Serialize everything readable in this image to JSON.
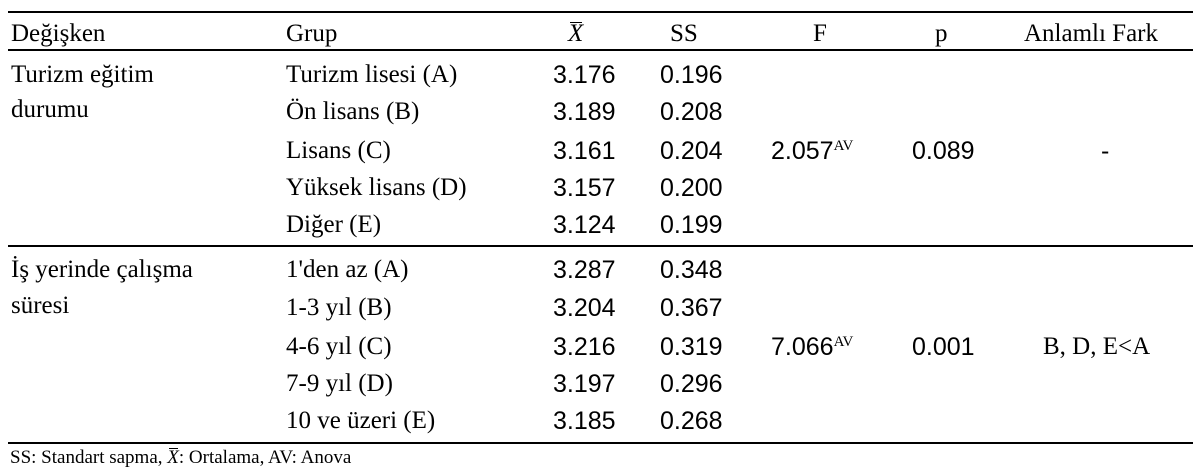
{
  "headers": {
    "degisken": "Değişken",
    "grup": "Grup",
    "mean": "X",
    "ss": "SS",
    "f": "F",
    "p": "p",
    "fark": "Anlamlı Fark"
  },
  "groups": [
    {
      "variable_line1": "Turizm eğitim",
      "variable_line2": "durumu",
      "f": "2.057",
      "f_sup": "AV",
      "p": "0.089",
      "fark": "-",
      "rows": [
        {
          "grup": "Turizm lisesi (A)",
          "mean": "3.176",
          "ss": "0.196"
        },
        {
          "grup": "Ön lisans (B)",
          "mean": "3.189",
          "ss": "0.208"
        },
        {
          "grup": "Lisans (C)",
          "mean": "3.161",
          "ss": "0.204"
        },
        {
          "grup": "Yüksek lisans (D)",
          "mean": "3.157",
          "ss": "0.200"
        },
        {
          "grup": "Diğer (E)",
          "mean": "3.124",
          "ss": "0.199"
        }
      ]
    },
    {
      "variable_line1": "İş yerinde çalışma",
      "variable_line2": "süresi",
      "f": "7.066",
      "f_sup": "AV",
      "p": "0.001",
      "fark": "B, D, E<A",
      "rows": [
        {
          "grup": "1'den az (A)",
          "mean": "3.287",
          "ss": "0.348"
        },
        {
          "grup": "1-3 yıl (B)",
          "mean": "3.204",
          "ss": "0.367"
        },
        {
          "grup": "4-6 yıl (C)",
          "mean": "3.216",
          "ss": "0.319"
        },
        {
          "grup": "7-9 yıl (D)",
          "mean": "3.197",
          "ss": "0.296"
        },
        {
          "grup": "10 ve üzeri (E)",
          "mean": "3.185",
          "ss": "0.268"
        }
      ]
    }
  ],
  "note": {
    "part1": "SS: Standart sapma, ",
    "xbar": "X",
    "part2": ": Ortalama, AV: Anova"
  }
}
